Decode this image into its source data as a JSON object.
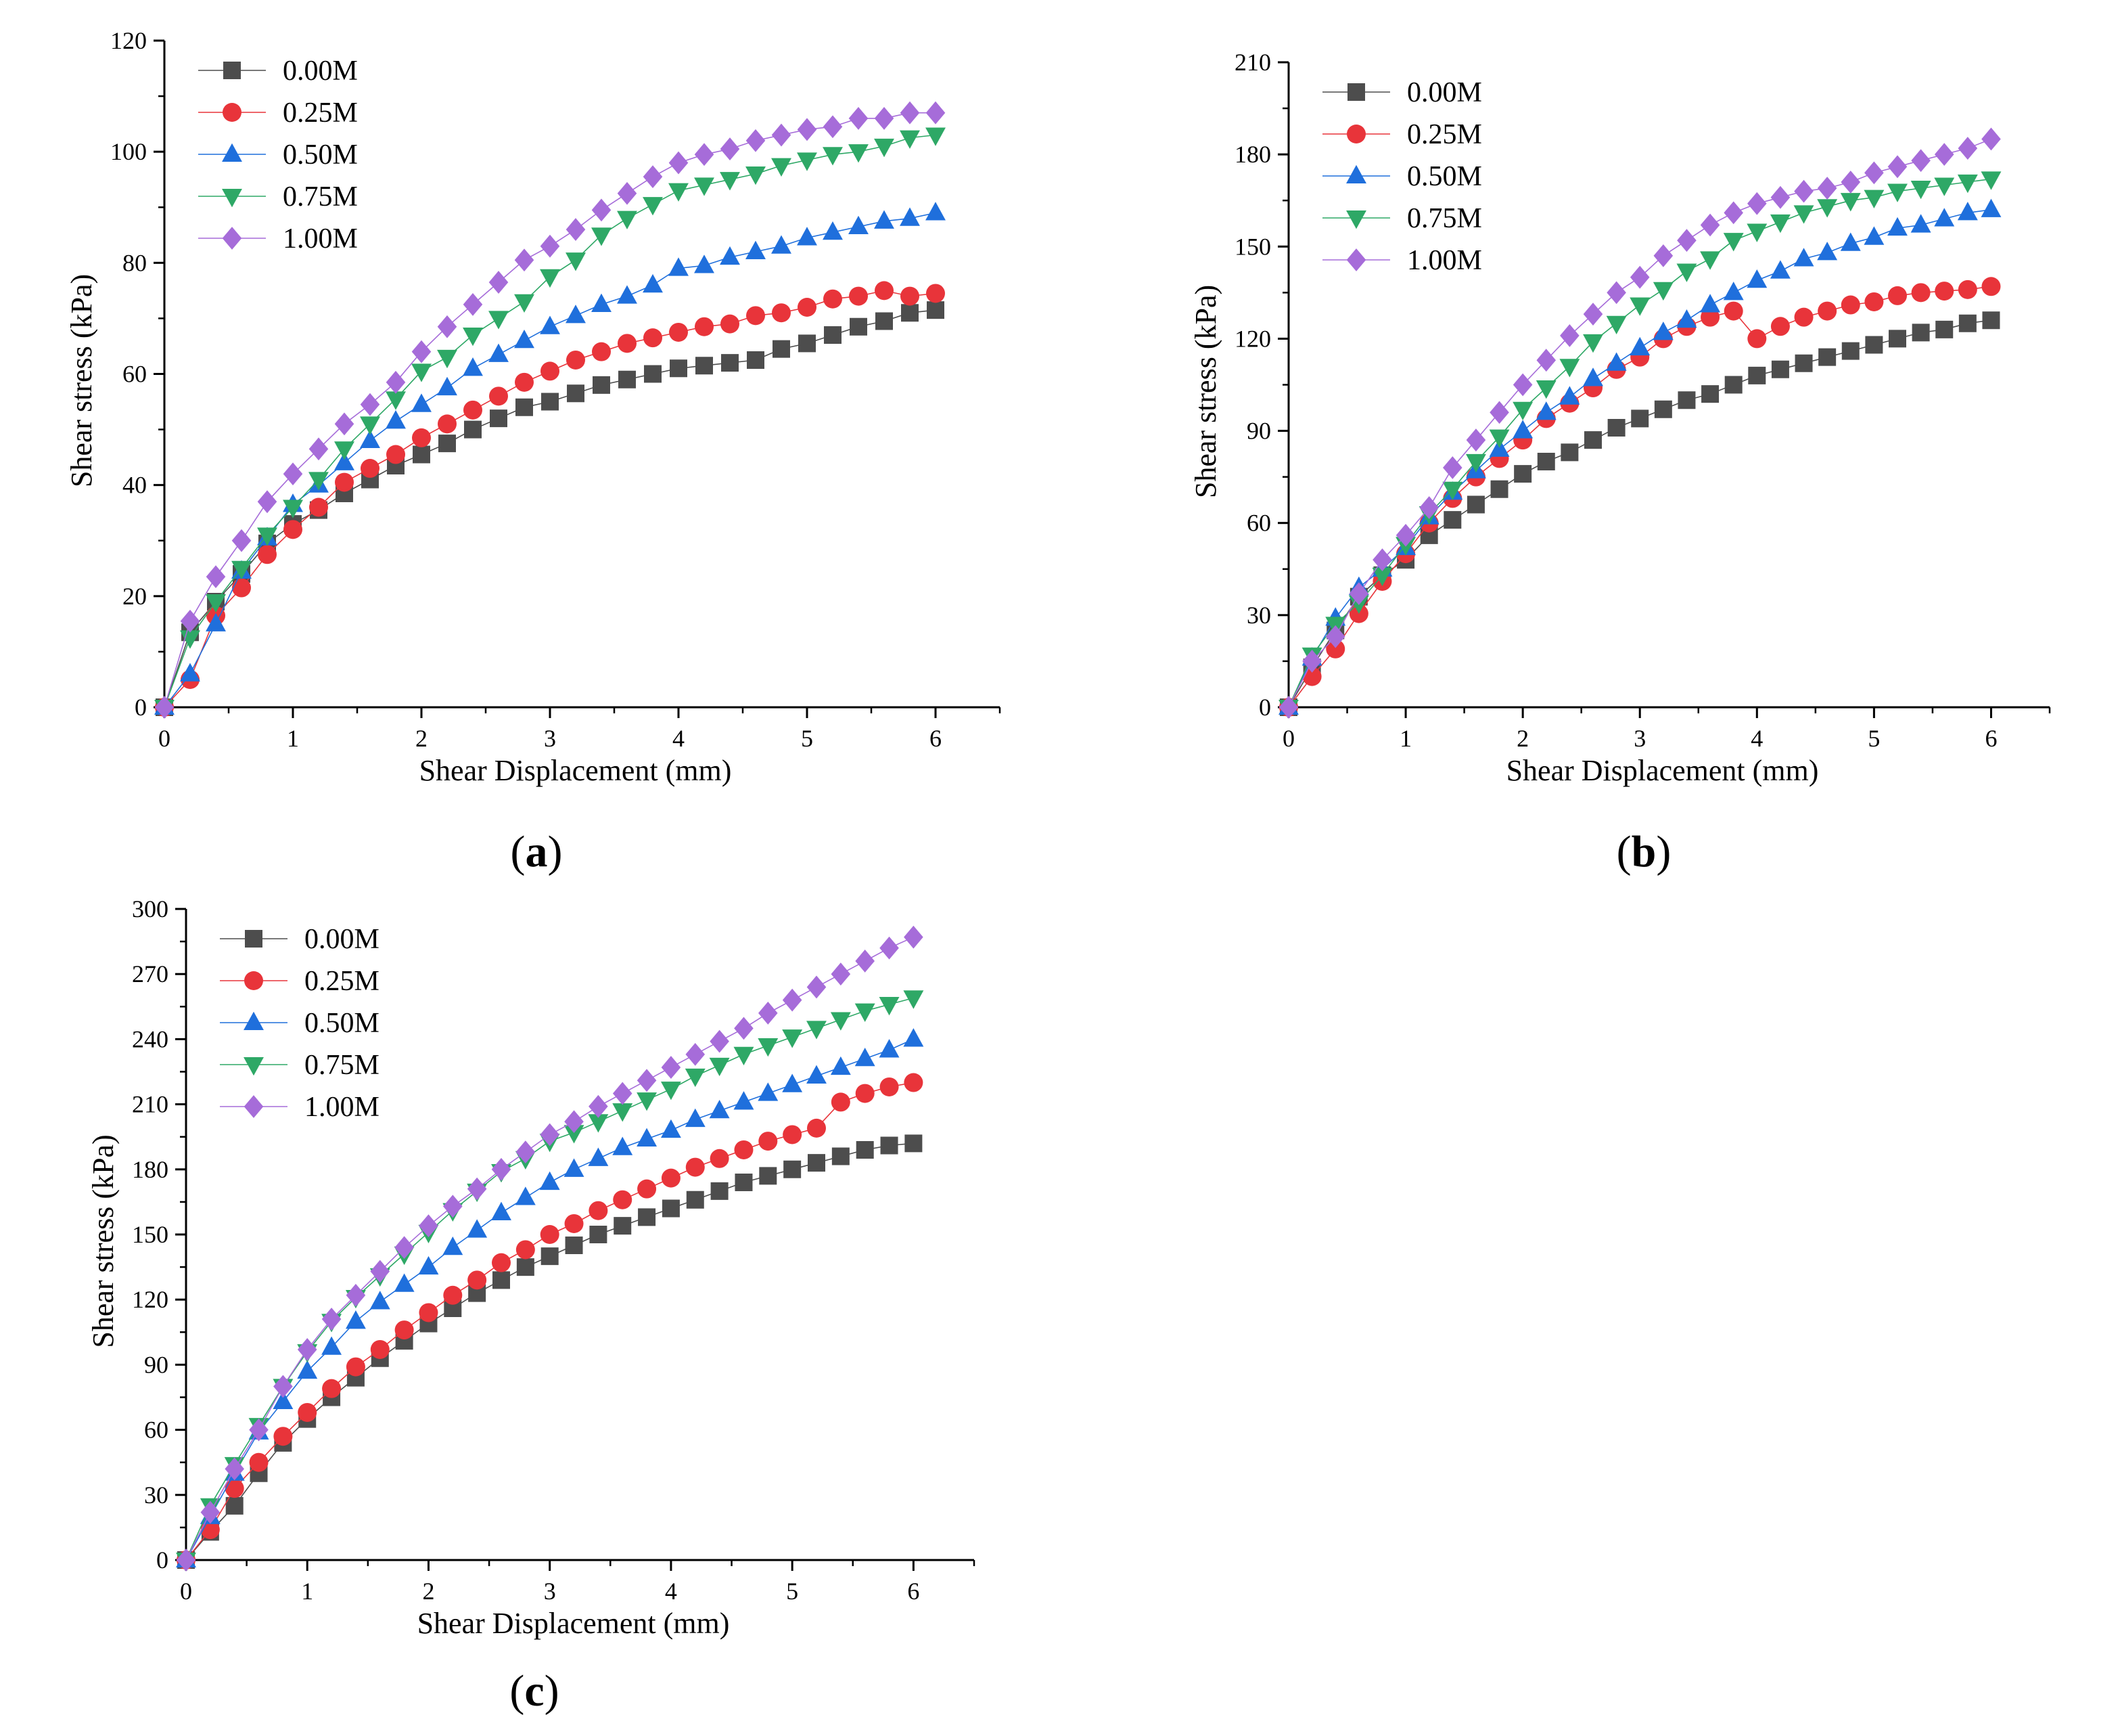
{
  "legend_series_names": [
    "0.00M",
    "0.25M",
    "0.50M",
    "0.75M",
    "1.00M"
  ],
  "series_colors": {
    "0.00M": "#4d4d4d",
    "0.25M": "#e8343a",
    "0.50M": "#1f6fdc",
    "0.75M": "#2ea866",
    "1.00M": "#a66cd9"
  },
  "series_markers": {
    "0.00M": "square",
    "0.25M": "circle",
    "0.50M": "triangle-up",
    "0.75M": "triangle-down",
    "1.00M": "diamond"
  },
  "chart_data": [
    {
      "panel": "a",
      "panel_label": "a",
      "type": "line",
      "xlabel": "Shear Displacement (mm)",
      "ylabel": "Shear stress (kPa)",
      "xlim": [
        0,
        6.5
      ],
      "ylim": [
        0,
        120
      ],
      "xticks": [
        0,
        1,
        2,
        3,
        4,
        5,
        6
      ],
      "yticks": [
        0,
        20,
        40,
        60,
        80,
        100,
        120
      ],
      "x": [
        0,
        0.2,
        0.4,
        0.6,
        0.8,
        1.0,
        1.2,
        1.4,
        1.6,
        1.8,
        2.0,
        2.2,
        2.4,
        2.6,
        2.8,
        3.0,
        3.2,
        3.4,
        3.6,
        3.8,
        4.0,
        4.2,
        4.4,
        4.6,
        4.8,
        5.0,
        5.2,
        5.4,
        5.6,
        5.8,
        6.0
      ],
      "legend_position": "top-left",
      "series": [
        {
          "name": "0.00M",
          "values": [
            0,
            13.5,
            19,
            24,
            29.5,
            33,
            35.5,
            38.5,
            41,
            43.5,
            45.5,
            47.5,
            50,
            52,
            54,
            55,
            56.5,
            58,
            59,
            60,
            61,
            61.5,
            62,
            62.5,
            64.5,
            65.5,
            67,
            68.5,
            69.5,
            71,
            71.5
          ]
        },
        {
          "name": "0.25M",
          "values": [
            0,
            5,
            16.5,
            21.5,
            27.5,
            32,
            36,
            40.5,
            43,
            45.5,
            48.5,
            51,
            53.5,
            56,
            58.5,
            60.5,
            62.5,
            64,
            65.5,
            66.5,
            67.5,
            68.5,
            69,
            70.5,
            71,
            72,
            73.5,
            74,
            75,
            74,
            74.5
          ]
        },
        {
          "name": "0.50M",
          "values": [
            0,
            6,
            15,
            24.5,
            30.5,
            36.5,
            40,
            44,
            48,
            51.5,
            54.5,
            57.5,
            61,
            63.5,
            66,
            68.5,
            70.5,
            72.5,
            74,
            76,
            79,
            79.5,
            81,
            82,
            83,
            84.5,
            85.5,
            86.5,
            87.5,
            88,
            89
          ]
        },
        {
          "name": "0.75M",
          "values": [
            0,
            12.5,
            19,
            25,
            31,
            36,
            41,
            46.5,
            51,
            55.5,
            60.5,
            63,
            67,
            70,
            73,
            77.5,
            80.5,
            85,
            88,
            90.5,
            93,
            94,
            95,
            96,
            97.5,
            98.5,
            99.5,
            100,
            101,
            102.5,
            103
          ]
        },
        {
          "name": "1.00M",
          "values": [
            0,
            15.5,
            23.5,
            30,
            37,
            42,
            46.5,
            51,
            54.5,
            58.5,
            64,
            68.5,
            72.5,
            76.5,
            80.5,
            83,
            86,
            89.5,
            92.5,
            95.5,
            98,
            99.5,
            100.5,
            102,
            103,
            104,
            104.5,
            106,
            106,
            107,
            107
          ]
        }
      ]
    },
    {
      "panel": "b",
      "panel_label": "b",
      "type": "line",
      "xlabel": "Shear Displacement (mm)",
      "ylabel": "Shear stress (kPa)",
      "xlim": [
        0,
        6.5
      ],
      "ylim": [
        0,
        210
      ],
      "xticks": [
        0,
        1,
        2,
        3,
        4,
        5,
        6
      ],
      "yticks": [
        0,
        30,
        60,
        90,
        120,
        150,
        180,
        210
      ],
      "x": [
        0,
        0.2,
        0.4,
        0.6,
        0.8,
        1.0,
        1.2,
        1.4,
        1.6,
        1.8,
        2.0,
        2.2,
        2.4,
        2.6,
        2.8,
        3.0,
        3.2,
        3.4,
        3.6,
        3.8,
        4.0,
        4.2,
        4.4,
        4.6,
        4.8,
        5.0,
        5.2,
        5.4,
        5.6,
        5.8,
        6.0
      ],
      "legend_position": "top-left",
      "series": [
        {
          "name": "0.00M",
          "values": [
            0,
            13,
            25,
            36,
            43,
            48,
            56,
            61,
            66,
            71,
            76,
            80,
            83,
            87,
            91,
            94,
            97,
            100,
            102,
            105,
            108,
            110,
            112,
            114,
            116,
            118,
            120,
            122,
            123,
            125,
            126
          ]
        },
        {
          "name": "0.25M",
          "values": [
            0,
            10,
            19,
            30.5,
            41,
            50,
            60,
            68,
            75,
            81,
            87,
            94,
            99,
            104,
            110,
            114,
            120,
            124,
            127,
            129,
            120,
            124,
            127,
            129,
            131,
            132,
            134,
            135,
            135.5,
            136,
            137
          ]
        },
        {
          "name": "0.50M",
          "values": [
            0,
            16,
            29,
            39,
            45,
            52,
            62,
            70,
            77,
            84,
            90,
            96,
            101,
            107,
            112,
            117,
            122,
            126,
            131,
            135,
            139,
            142,
            146,
            148,
            151,
            153,
            156,
            157,
            159,
            161,
            162
          ]
        },
        {
          "name": "0.75M",
          "values": [
            0,
            17,
            27,
            34,
            43,
            53,
            63,
            71,
            80,
            88,
            97,
            104,
            111,
            119,
            125,
            131,
            136,
            142,
            146,
            152,
            155,
            158,
            161,
            163,
            165,
            166,
            168,
            169,
            170,
            171,
            172
          ]
        },
        {
          "name": "1.00M",
          "values": [
            0,
            15,
            23,
            37,
            48,
            56,
            65,
            78,
            87,
            96,
            105,
            113,
            121,
            128,
            135,
            140,
            147,
            152,
            157,
            161,
            164,
            166,
            168,
            169,
            171,
            174,
            176,
            178,
            180,
            182,
            185
          ]
        }
      ]
    },
    {
      "panel": "c",
      "panel_label": "c",
      "type": "line",
      "xlabel": "Shear Displacement (mm)",
      "ylabel": "Shear stress (kPa)",
      "xlim": [
        0,
        6.5
      ],
      "ylim": [
        0,
        300
      ],
      "xticks": [
        0,
        1,
        2,
        3,
        4,
        5,
        6
      ],
      "yticks": [
        0,
        30,
        60,
        90,
        120,
        150,
        180,
        210,
        240,
        270,
        300
      ],
      "x": [
        0,
        0.2,
        0.4,
        0.6,
        0.8,
        1.0,
        1.2,
        1.4,
        1.6,
        1.8,
        2.0,
        2.2,
        2.4,
        2.6,
        2.8,
        3.0,
        3.2,
        3.4,
        3.6,
        3.8,
        4.0,
        4.2,
        4.4,
        4.6,
        4.8,
        5.0,
        5.2,
        5.4,
        5.6,
        5.8,
        6.0
      ],
      "legend_position": "top-left",
      "series": [
        {
          "name": "0.00M",
          "values": [
            0,
            13,
            25,
            40,
            54,
            65,
            75,
            84,
            93,
            101,
            109,
            116,
            123,
            129,
            135,
            140,
            145,
            150,
            154,
            158,
            162,
            166,
            170,
            174,
            177,
            180,
            183,
            186,
            189,
            191,
            192
          ]
        },
        {
          "name": "0.25M",
          "values": [
            0,
            14,
            33,
            45,
            57,
            68,
            79,
            89,
            97,
            106,
            114,
            122,
            129,
            137,
            143,
            150,
            155,
            161,
            166,
            171,
            176,
            181,
            185,
            189,
            193,
            196,
            199,
            211,
            215,
            218,
            220
          ]
        },
        {
          "name": "0.50M",
          "values": [
            0,
            20,
            40,
            59,
            73,
            87,
            98,
            110,
            119,
            127,
            135,
            144,
            152,
            160,
            167,
            174,
            180,
            185,
            190,
            194,
            198,
            203,
            207,
            211,
            215,
            219,
            223,
            227,
            231,
            235,
            240
          ]
        },
        {
          "name": "0.75M",
          "values": [
            0,
            25,
            44,
            62,
            80,
            96,
            110,
            121,
            131,
            141,
            151,
            161,
            170,
            179,
            185,
            193,
            197,
            202,
            207,
            212,
            217,
            223,
            228,
            233,
            237,
            241,
            245,
            249,
            253,
            256,
            259
          ]
        },
        {
          "name": "1.00M",
          "values": [
            0,
            22,
            42,
            60,
            80,
            97,
            111,
            122,
            133,
            144,
            154,
            163,
            171,
            180,
            188,
            196,
            202,
            209,
            215,
            221,
            227,
            233,
            239,
            245,
            252,
            258,
            264,
            270,
            276,
            282,
            287
          ]
        }
      ]
    }
  ]
}
